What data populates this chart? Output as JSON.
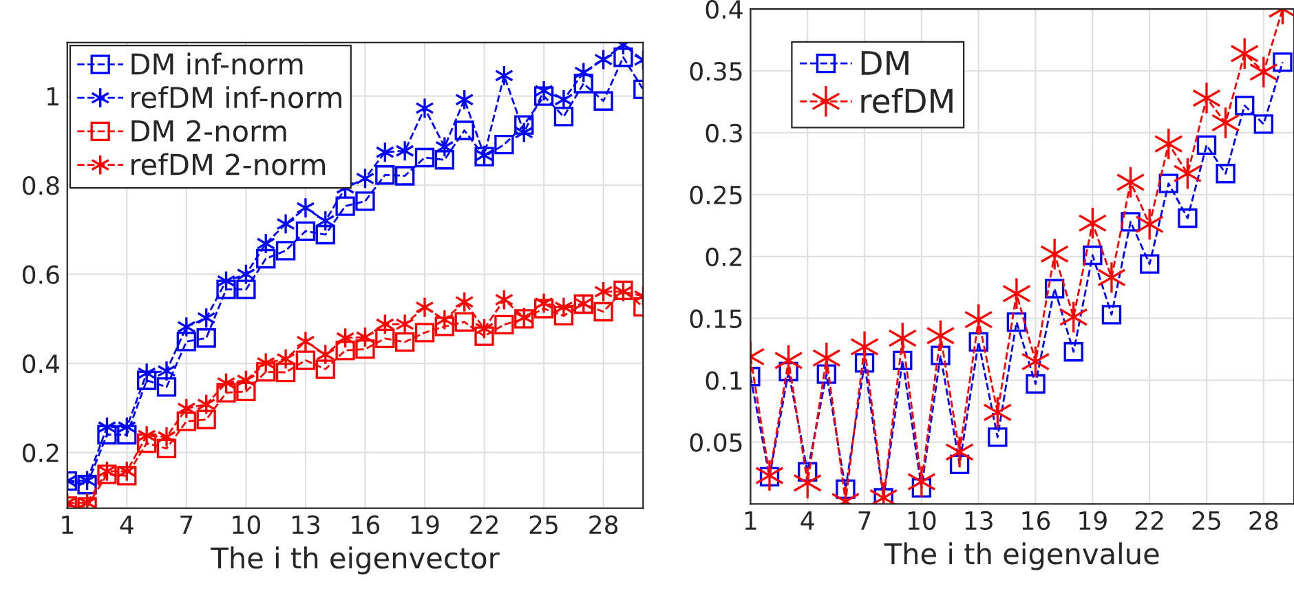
{
  "chart_data": [
    {
      "type": "line",
      "xlabel": "The i th eigenvector",
      "x": [
        1,
        2,
        3,
        4,
        5,
        6,
        7,
        8,
        9,
        10,
        11,
        12,
        13,
        14,
        15,
        16,
        17,
        18,
        19,
        20,
        21,
        22,
        23,
        24,
        25,
        26,
        27,
        28,
        29,
        30
      ],
      "xlim": [
        1,
        30
      ],
      "xticks": [
        1,
        4,
        7,
        10,
        13,
        16,
        19,
        22,
        25,
        28
      ],
      "ylim": [
        0.075,
        1.12
      ],
      "yticks": [
        0.2,
        0.4,
        0.6,
        0.8,
        1
      ],
      "grid": true,
      "legend": "top left",
      "line_style": "dashed",
      "series": [
        {
          "name": "DM inf-norm",
          "color": "#0000ff",
          "marker": "square",
          "values": [
            0.136,
            0.128,
            0.24,
            0.24,
            0.362,
            0.347,
            0.449,
            0.457,
            0.566,
            0.566,
            0.635,
            0.653,
            0.697,
            0.689,
            0.753,
            0.764,
            0.823,
            0.821,
            0.862,
            0.857,
            0.923,
            0.864,
            0.891,
            0.935,
            1.0,
            0.954,
            1.028,
            0.989,
            1.087,
            1.015
          ]
        },
        {
          "name": "refDM inf-norm",
          "color": "#0000ff",
          "marker": "cross",
          "values": [
            0.136,
            0.137,
            0.257,
            0.257,
            0.378,
            0.383,
            0.482,
            0.502,
            0.585,
            0.6,
            0.669,
            0.713,
            0.749,
            0.72,
            0.794,
            0.815,
            0.874,
            0.877,
            0.973,
            0.886,
            0.992,
            0.867,
            1.046,
            0.918,
            1.012,
            0.992,
            1.053,
            1.082,
            1.115,
            1.081
          ]
        },
        {
          "name": "DM 2-norm",
          "color": "#ff0000",
          "marker": "square",
          "values": [
            0.08,
            0.078,
            0.151,
            0.148,
            0.221,
            0.209,
            0.27,
            0.274,
            0.334,
            0.337,
            0.381,
            0.38,
            0.407,
            0.387,
            0.429,
            0.432,
            0.456,
            0.448,
            0.469,
            0.483,
            0.493,
            0.461,
            0.487,
            0.5,
            0.523,
            0.507,
            0.533,
            0.516,
            0.564,
            0.527
          ]
        },
        {
          "name": "refDM 2-norm",
          "color": "#ff0000",
          "marker": "cross",
          "values": [
            0.087,
            0.087,
            0.158,
            0.158,
            0.238,
            0.235,
            0.299,
            0.308,
            0.356,
            0.362,
            0.401,
            0.41,
            0.449,
            0.42,
            0.457,
            0.459,
            0.488,
            0.488,
            0.526,
            0.498,
            0.538,
            0.478,
            0.543,
            0.503,
            0.535,
            0.526,
            0.534,
            0.561,
            0.561,
            0.551
          ]
        }
      ]
    },
    {
      "type": "line",
      "xlabel": "The i th eigenvalue",
      "x": [
        1,
        2,
        3,
        4,
        5,
        6,
        7,
        8,
        9,
        10,
        11,
        12,
        13,
        14,
        15,
        16,
        17,
        18,
        19,
        20,
        21,
        22,
        23,
        24,
        25,
        26,
        27,
        28,
        29
      ],
      "xlim": [
        1,
        29.6
      ],
      "xticks": [
        1,
        4,
        7,
        10,
        13,
        16,
        19,
        22,
        25,
        28
      ],
      "ylim": [
        0,
        0.4
      ],
      "yticks": [
        0.05,
        0.1,
        0.15,
        0.2,
        0.25,
        0.3,
        0.35,
        0.4
      ],
      "grid": true,
      "legend": "top left",
      "line_style": "dashed",
      "series": [
        {
          "name": "DM",
          "color": "#0000ff",
          "marker": "square",
          "values": [
            0.103,
            0.022,
            0.107,
            0.026,
            0.105,
            0.012,
            0.114,
            0.005,
            0.116,
            0.013,
            0.12,
            0.032,
            0.131,
            0.054,
            0.147,
            0.097,
            0.174,
            0.123,
            0.201,
            0.153,
            0.228,
            0.194,
            0.259,
            0.231,
            0.29,
            0.267,
            0.322,
            0.307,
            0.357
          ]
        },
        {
          "name": "refDM",
          "color": "#ff0000",
          "marker": "cross",
          "values": [
            0.119,
            0.023,
            0.116,
            0.017,
            0.118,
            0.002,
            0.127,
            0.005,
            0.134,
            0.018,
            0.136,
            0.042,
            0.149,
            0.074,
            0.17,
            0.115,
            0.202,
            0.151,
            0.227,
            0.183,
            0.26,
            0.226,
            0.291,
            0.267,
            0.328,
            0.308,
            0.364,
            0.349,
            0.4
          ]
        }
      ]
    }
  ]
}
